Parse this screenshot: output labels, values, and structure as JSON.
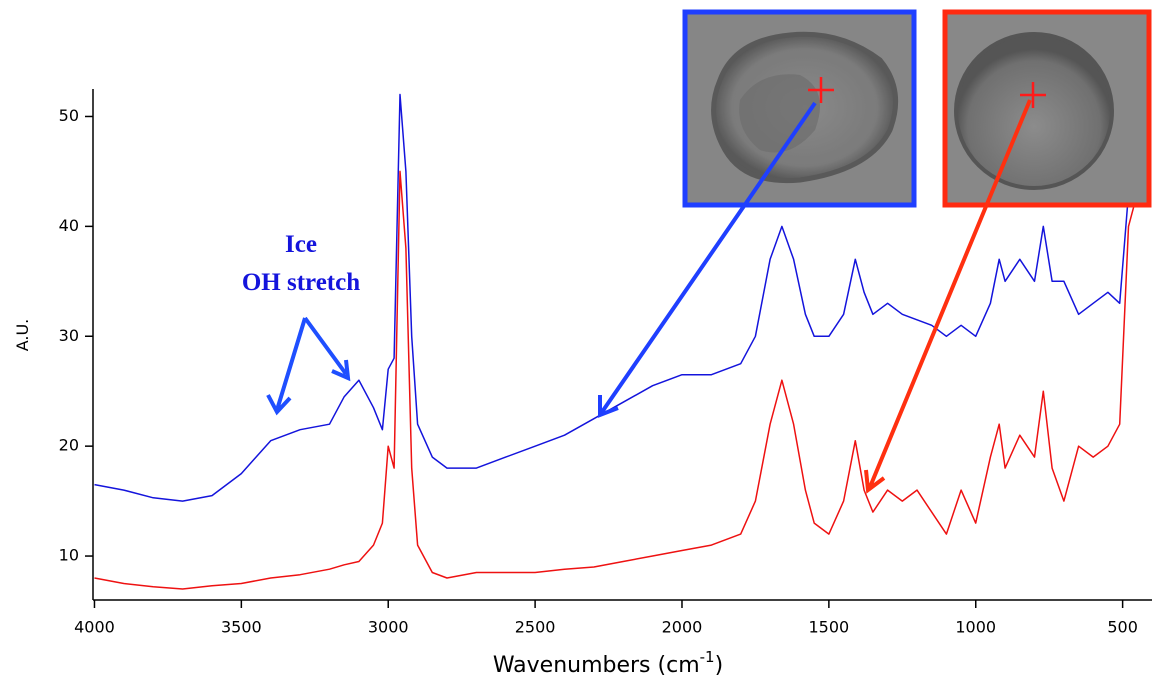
{
  "chart_data": {
    "type": "line",
    "x_label": "Wavenumbers (cm",
    "x_label_sup": "-1",
    "x_label_end": ")",
    "y_label": "A.U.",
    "annotations": [
      "Ice",
      "OH stretch"
    ],
    "x": [
      4000,
      3900,
      3800,
      3700,
      3600,
      3500,
      3400,
      3300,
      3200,
      3150,
      3100,
      3050,
      3020,
      3000,
      2980,
      2960,
      2940,
      2920,
      2900,
      2850,
      2800,
      2700,
      2600,
      2500,
      2400,
      2300,
      2200,
      2100,
      2000,
      1900,
      1800,
      1750,
      1700,
      1660,
      1620,
      1580,
      1550,
      1500,
      1450,
      1410,
      1380,
      1350,
      1300,
      1250,
      1200,
      1150,
      1100,
      1050,
      1000,
      950,
      920,
      900,
      850,
      800,
      770,
      740,
      700,
      650,
      600,
      550,
      510,
      480,
      440,
      410
    ],
    "series": [
      {
        "color": "#1414dc",
        "values": [
          16.5,
          16,
          15.3,
          15,
          15.5,
          17.5,
          20.5,
          21.5,
          22,
          24.5,
          26,
          23.5,
          21.5,
          27,
          28,
          52,
          45,
          30,
          22,
          19,
          18,
          18,
          19,
          20,
          21,
          22.5,
          24,
          25.5,
          26.5,
          26.5,
          27.5,
          30,
          37,
          40,
          37,
          32,
          30,
          30,
          32,
          37,
          34,
          32,
          33,
          32,
          31.5,
          31,
          30,
          31,
          30,
          33,
          37,
          35,
          37,
          35,
          40,
          35,
          35,
          32,
          33,
          34,
          33,
          43,
          45,
          43
        ]
      },
      {
        "color": "#ee1111",
        "values": [
          8,
          7.5,
          7.2,
          7,
          7.3,
          7.5,
          8,
          8.3,
          8.8,
          9.2,
          9.5,
          11,
          13,
          20,
          18,
          45,
          38,
          18,
          11,
          8.5,
          8,
          8.5,
          8.5,
          8.5,
          8.8,
          9,
          9.5,
          10,
          10.5,
          11,
          12,
          15,
          22,
          26,
          22,
          16,
          13,
          12,
          15,
          20.5,
          16,
          14,
          16,
          15,
          16,
          14,
          12,
          16,
          13,
          19,
          22,
          18,
          21,
          19,
          25,
          18,
          15,
          20,
          19,
          20,
          22,
          40,
          44,
          42
        ]
      }
    ],
    "xlim": [
      4005,
      400
    ],
    "xticks": [
      4000,
      3500,
      3000,
      2500,
      2000,
      1500,
      1000,
      500
    ],
    "ylim": [
      6,
      52.5
    ],
    "yticks": [
      10,
      20,
      30,
      40,
      50
    ]
  }
}
